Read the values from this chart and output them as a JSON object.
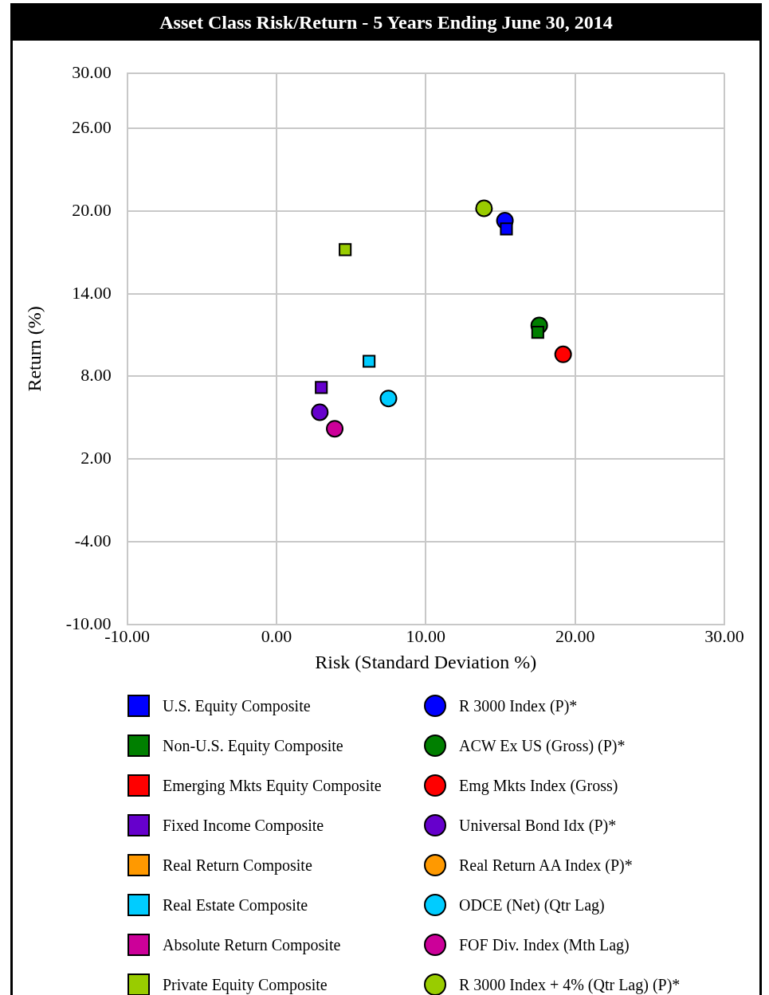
{
  "chart_data": {
    "type": "scatter",
    "title": "Asset Class Risk/Return - 5 Years Ending June 30, 2014",
    "xlabel": "Risk (Standard Deviation %)",
    "ylabel": "Return (%)",
    "xlim": [
      -10,
      30
    ],
    "xticks": [
      {
        "value": -10,
        "label": "-10.00"
      },
      {
        "value": 0,
        "label": "0.00"
      },
      {
        "value": 10,
        "label": "10.00"
      },
      {
        "value": 20,
        "label": "20.00"
      },
      {
        "value": 30,
        "label": "30.00"
      }
    ],
    "ylim": [
      -10,
      30
    ],
    "yticks": [
      {
        "value": -10,
        "label": "-10.00"
      },
      {
        "value": -4,
        "label": "-4.00"
      },
      {
        "value": 2,
        "label": "2.00"
      },
      {
        "value": 8,
        "label": "8.00"
      },
      {
        "value": 14,
        "label": "14.00"
      },
      {
        "value": 20,
        "label": "20.00"
      },
      {
        "value": 26,
        "label": "26.00"
      },
      {
        "value": 30,
        "label": "30.00"
      }
    ],
    "grid": true,
    "legend": "bottom",
    "series": [
      {
        "name": "U.S. Equity Composite",
        "color": "#0000ff",
        "marker": "square",
        "x": [
          15.4
        ],
        "values": [
          18.7
        ]
      },
      {
        "name": "Non-U.S. Equity Composite",
        "color": "#007f00",
        "marker": "square",
        "x": [
          17.5
        ],
        "values": [
          11.2
        ]
      },
      {
        "name": "Emerging Mkts Equity Composite",
        "color": "#ff0000",
        "marker": "square",
        "x": [
          null
        ],
        "values": [
          null
        ]
      },
      {
        "name": "Fixed Income Composite",
        "color": "#6600cc",
        "marker": "square",
        "x": [
          3.0
        ],
        "values": [
          7.2
        ]
      },
      {
        "name": "Real Return Composite",
        "color": "#ff9900",
        "marker": "square",
        "x": [
          null
        ],
        "values": [
          null
        ]
      },
      {
        "name": "Real Estate Composite",
        "color": "#00ccff",
        "marker": "square",
        "x": [
          6.2
        ],
        "values": [
          9.1
        ]
      },
      {
        "name": "Absolute Return Composite",
        "color": "#cc0099",
        "marker": "square",
        "x": [
          null
        ],
        "values": [
          null
        ]
      },
      {
        "name": "Private Equity Composite",
        "color": "#99cc00",
        "marker": "square",
        "x": [
          4.6
        ],
        "values": [
          17.2
        ]
      },
      {
        "name": "R 3000 Index (P)*",
        "color": "#0000ff",
        "marker": "circle",
        "x": [
          15.3
        ],
        "values": [
          19.3
        ]
      },
      {
        "name": "ACW Ex US (Gross) (P)*",
        "color": "#007f00",
        "marker": "circle",
        "x": [
          17.6
        ],
        "values": [
          11.7
        ]
      },
      {
        "name": "Emg Mkts Index (Gross)",
        "color": "#ff0000",
        "marker": "circle",
        "x": [
          19.2
        ],
        "values": [
          9.6
        ]
      },
      {
        "name": "Universal Bond Idx (P)*",
        "color": "#6600cc",
        "marker": "circle",
        "x": [
          2.9
        ],
        "values": [
          5.4
        ]
      },
      {
        "name": "Real Return AA Index (P)*",
        "color": "#ff9900",
        "marker": "circle",
        "x": [
          null
        ],
        "values": [
          null
        ]
      },
      {
        "name": "ODCE (Net) (Qtr Lag)",
        "color": "#00ccff",
        "marker": "circle",
        "x": [
          7.5
        ],
        "values": [
          6.4
        ]
      },
      {
        "name": "FOF Div. Index (Mth Lag)",
        "color": "#cc0099",
        "marker": "circle",
        "x": [
          3.9
        ],
        "values": [
          4.2
        ]
      },
      {
        "name": "R 3000 Index + 4% (Qtr Lag) (P)*",
        "color": "#99cc00",
        "marker": "circle",
        "x": [
          13.9
        ],
        "values": [
          20.2
        ]
      }
    ]
  }
}
